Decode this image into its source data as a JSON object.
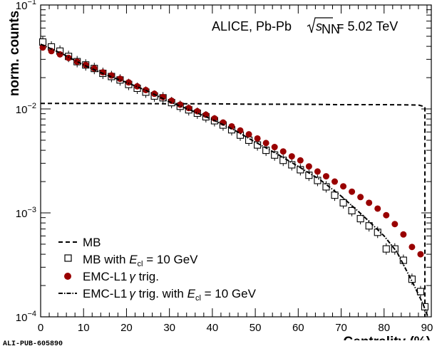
{
  "chart_data": {
    "type": "line",
    "title": "",
    "xlabel": "Centrality (%)",
    "ylabel": "norm. counts",
    "xlim": [
      0,
      91
    ],
    "ylim": [
      0.0001,
      0.1
    ],
    "yscale": "log",
    "x_ticks": [
      0,
      10,
      20,
      30,
      40,
      50,
      60,
      70,
      80,
      90
    ],
    "y_ticks": [
      {
        "value": 0.1,
        "base": "10",
        "exp": "−1"
      },
      {
        "value": 0.01,
        "base": "10",
        "exp": "−2"
      },
      {
        "value": 0.001,
        "base": "10",
        "exp": "−3"
      },
      {
        "value": 0.0001,
        "base": "10",
        "exp": "−4"
      }
    ],
    "annotation": {
      "prefix": "ALICE, Pb-Pb",
      "sqrt": "s",
      "sub": "NN",
      "suffix": "= 5.02 TeV"
    },
    "legend_position": "bottom-left",
    "series": [
      {
        "name": "MB",
        "style": "dashed",
        "color": "#000000",
        "x": [
          0,
          10,
          20,
          30,
          40,
          50,
          60,
          70,
          80,
          88,
          89.5,
          89.5
        ],
        "y": [
          0.0113,
          0.0113,
          0.0113,
          0.0112,
          0.0112,
          0.0111,
          0.0111,
          0.011,
          0.011,
          0.0109,
          0.0105,
          0.0001
        ]
      },
      {
        "name": "MB with E_cl = 10 GeV",
        "style": "open-square",
        "color": "#000000",
        "x": [
          0.5,
          2.5,
          4.5,
          6.5,
          8.5,
          10.5,
          12.5,
          14.5,
          16.5,
          18.5,
          20.5,
          22.5,
          24.5,
          26.5,
          28.5,
          30.5,
          32.5,
          34.5,
          36.5,
          38.5,
          40.5,
          42.5,
          44.5,
          46.5,
          48.5,
          50.5,
          52.5,
          54.5,
          56.5,
          58.5,
          60.5,
          62.5,
          64.5,
          66.5,
          68.5,
          70.5,
          72.5,
          74.5,
          76.5,
          78.5,
          80.5,
          82.5,
          84.5,
          86.5,
          88.5,
          89.5
        ],
        "y": [
          0.044,
          0.0395,
          0.036,
          0.032,
          0.0285,
          0.0265,
          0.0245,
          0.022,
          0.0205,
          0.019,
          0.0172,
          0.0158,
          0.0145,
          0.0133,
          0.0128,
          0.0115,
          0.0106,
          0.0098,
          0.0091,
          0.0084,
          0.0077,
          0.007,
          0.0063,
          0.0056,
          0.005,
          0.0045,
          0.004,
          0.0036,
          0.0032,
          0.0029,
          0.0026,
          0.0023,
          0.00205,
          0.00178,
          0.00148,
          0.00125,
          0.00105,
          0.00088,
          0.00075,
          0.00065,
          0.00045,
          0.00045,
          0.00035,
          0.00023,
          0.000175,
          0.000125
        ]
      },
      {
        "name": "EMC-L1γ trig.",
        "style": "filled-circle",
        "color": "#990000",
        "x": [
          0.5,
          2.5,
          4.5,
          6.5,
          8.5,
          10.5,
          12.5,
          14.5,
          16.5,
          18.5,
          20.5,
          22.5,
          24.5,
          26.5,
          28.5,
          30.5,
          32.5,
          34.5,
          36.5,
          38.5,
          40.5,
          42.5,
          44.5,
          46.5,
          48.5,
          50.5,
          52.5,
          54.5,
          56.5,
          58.5,
          60.5,
          62.5,
          64.5,
          66.5,
          68.5,
          70.5,
          72.5,
          74.5,
          76.5,
          78.5,
          80.5,
          82.5,
          84.5,
          86.5,
          88.5
        ],
        "y": [
          0.039,
          0.036,
          0.0335,
          0.031,
          0.0285,
          0.0265,
          0.0245,
          0.0225,
          0.021,
          0.0195,
          0.018,
          0.0165,
          0.0152,
          0.014,
          0.013,
          0.012,
          0.011,
          0.0102,
          0.0095,
          0.0088,
          0.0081,
          0.0074,
          0.0068,
          0.0062,
          0.0057,
          0.0052,
          0.0047,
          0.0043,
          0.0039,
          0.0035,
          0.0032,
          0.0028,
          0.0025,
          0.00225,
          0.002,
          0.0018,
          0.0016,
          0.00142,
          0.00125,
          0.0011,
          0.00095,
          0.00078,
          0.00062,
          0.00047,
          0.0004
        ]
      },
      {
        "name": "EMC-L1γ trig. with E_cl = 10 GeV",
        "style": "dash-dot",
        "color": "#000000",
        "x": [
          0,
          5,
          10,
          15,
          20,
          25,
          30,
          35,
          40,
          45,
          50,
          55,
          60,
          65,
          70,
          75,
          80,
          83,
          85,
          87,
          89,
          90.2
        ],
        "y": [
          0.042,
          0.034,
          0.0265,
          0.0215,
          0.018,
          0.0148,
          0.0117,
          0.0097,
          0.0079,
          0.0063,
          0.0048,
          0.0037,
          0.0028,
          0.0021,
          0.00145,
          0.00095,
          0.0006,
          0.00042,
          0.00029,
          0.0002,
          0.000135,
          0.0001
        ]
      }
    ],
    "legend_labels": [
      {
        "text": "MB",
        "italic": "",
        "sub": "",
        "rest": ""
      },
      {
        "text": "MB with ",
        "italic": "E",
        "sub": "cl",
        "rest": " = 10 GeV"
      },
      {
        "text": "EMC-L1",
        "italic": "γ",
        "sub": "",
        "rest": " trig."
      },
      {
        "text": "EMC-L1",
        "italic": "γ",
        "sub": "",
        "rest": " trig. with ",
        "italic2": "E",
        "sub2": "cl",
        "rest2": " = 10 GeV"
      }
    ]
  },
  "footer_id": "ALI-PUB-605890"
}
